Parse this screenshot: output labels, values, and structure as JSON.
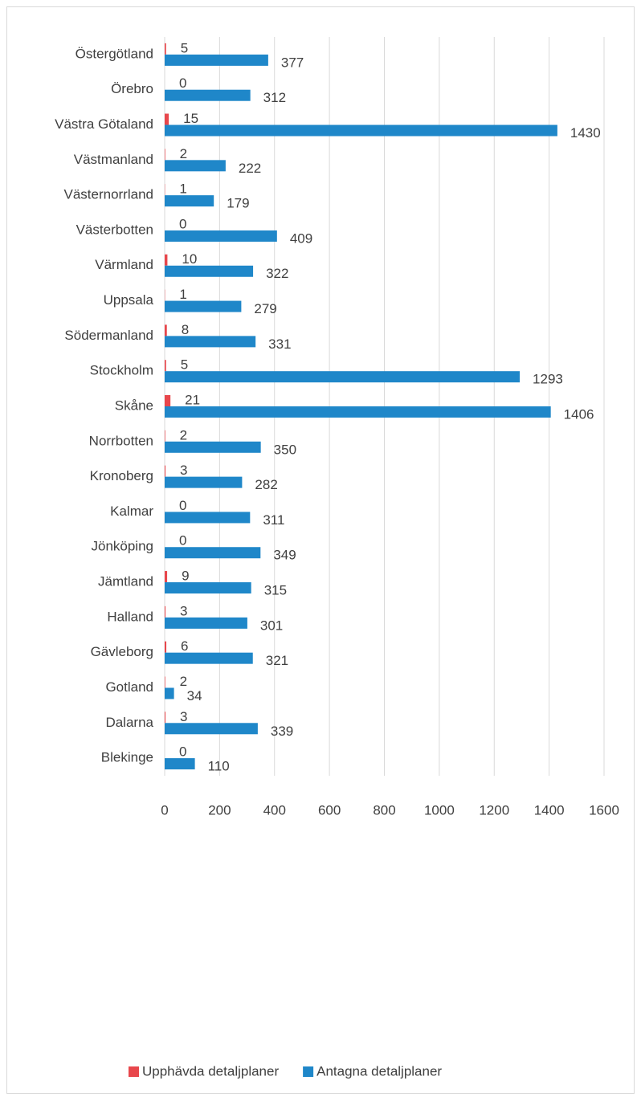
{
  "chart_data": {
    "type": "bar",
    "orientation": "horizontal",
    "categories": [
      "Östergötland",
      "Örebro",
      "Västra Götaland",
      "Västmanland",
      "Västernorrland",
      "Västerbotten",
      "Värmland",
      "Uppsala",
      "Södermanland",
      "Stockholm",
      "Skåne",
      "Norrbotten",
      "Kronoberg",
      "Kalmar",
      "Jönköping",
      "Jämtland",
      "Halland",
      "Gävleborg",
      "Gotland",
      "Dalarna",
      "Blekinge"
    ],
    "series": [
      {
        "name": "Upphävda detaljplaner",
        "color": "#e8474c",
        "values": [
          5,
          0,
          15,
          2,
          1,
          0,
          10,
          1,
          8,
          5,
          21,
          2,
          3,
          0,
          0,
          9,
          3,
          6,
          2,
          3,
          0
        ]
      },
      {
        "name": "Antagna detaljplaner",
        "color": "#1f87c9",
        "values": [
          377,
          312,
          1430,
          222,
          179,
          409,
          322,
          279,
          331,
          1293,
          1406,
          350,
          282,
          311,
          349,
          315,
          301,
          321,
          34,
          339,
          110
        ]
      }
    ],
    "xlim": [
      0,
      1600
    ],
    "xticks": [
      0,
      200,
      400,
      600,
      800,
      1000,
      1200,
      1400,
      1600
    ],
    "grid": true,
    "legend": "bottom"
  }
}
